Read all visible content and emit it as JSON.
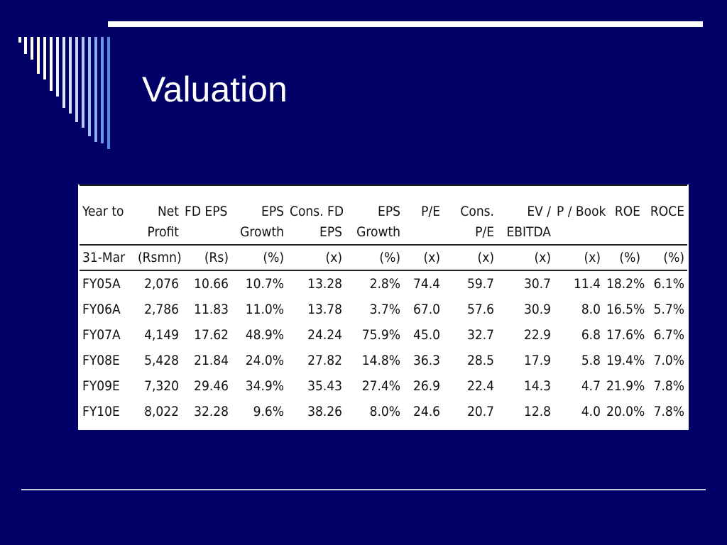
{
  "slide": {
    "title": "Valuation"
  },
  "table": {
    "header_row1": [
      [
        "Year to"
      ],
      [
        "Net",
        "Profit"
      ],
      [
        "FD EPS"
      ],
      [
        "EPS",
        "Growth"
      ],
      [
        "Cons. FD",
        "EPS"
      ],
      [
        "EPS",
        "Growth"
      ],
      [
        "P/E"
      ],
      [
        "Cons.",
        "P/E"
      ],
      [
        "EV /",
        "EBITDA"
      ],
      [
        "P / Book"
      ],
      [
        "ROE"
      ],
      [
        "ROCE"
      ]
    ],
    "header_row2": [
      "31-Mar",
      "(Rsmn)",
      "(Rs)",
      "(%)",
      "(x)",
      "(%)",
      "(x)",
      "(x)",
      "(x)",
      "(x)",
      "(%)",
      "(%)"
    ],
    "rows": [
      [
        "FY05A",
        "2,076",
        "10.66",
        "10.7%",
        "13.28",
        "2.8%",
        "74.4",
        "59.7",
        "30.7",
        "11.4",
        "18.2%",
        "6.1%"
      ],
      [
        "FY06A",
        "2,786",
        "11.83",
        "11.0%",
        "13.78",
        "3.7%",
        "67.0",
        "57.6",
        "30.9",
        "8.0",
        "16.5%",
        "5.7%"
      ],
      [
        "FY07A",
        "4,149",
        "17.62",
        "48.9%",
        "24.24",
        "75.9%",
        "45.0",
        "32.7",
        "22.9",
        "6.8",
        "17.6%",
        "6.7%"
      ],
      [
        "FY08E",
        "5,428",
        "21.84",
        "24.0%",
        "27.82",
        "14.8%",
        "36.3",
        "28.5",
        "17.9",
        "5.8",
        "19.4%",
        "7.0%"
      ],
      [
        "FY09E",
        "7,320",
        "29.46",
        "34.9%",
        "35.43",
        "27.4%",
        "26.9",
        "22.4",
        "14.3",
        "4.7",
        "21.9%",
        "7.8%"
      ],
      [
        "FY10E",
        "8,022",
        "32.28",
        "9.6%",
        "38.26",
        "8.0%",
        "24.6",
        "20.7",
        "12.8",
        "4.0",
        "20.0%",
        "7.8%"
      ]
    ]
  }
}
